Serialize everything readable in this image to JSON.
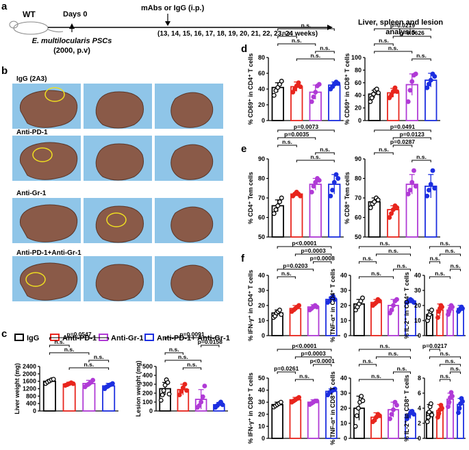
{
  "panel_labels": [
    "a",
    "b",
    "c",
    "d",
    "e",
    "f"
  ],
  "timeline": {
    "species": "WT",
    "day0": "Days 0",
    "treatment": "mAbs or IgG (i.p.)",
    "weeks": "(13, 14, 15, 16, 17, 18, 19, 20, 21, 22, 23, 24 weeks)",
    "analysis_line1": "Liver, spleen and lesion",
    "analysis_line2": "analysis",
    "psc_line1": "E. multilocularis PSCs",
    "psc_line2": "(2000, p.v)"
  },
  "photo_groups": [
    "IgG (2A3)",
    "Anti-PD-1",
    "Anti-Gr-1",
    "Anti-PD-1+Anti-Gr-1"
  ],
  "legend": {
    "items": [
      {
        "label": "IgG",
        "color": "#000000"
      },
      {
        "label": "Anti-PD-1",
        "color": "#e8251d"
      },
      {
        "label": "Anti-Gr-1",
        "color": "#b03ad6"
      },
      {
        "label": "Anti-PD-1+ Anti-Gr-1",
        "color": "#1c2ee0"
      }
    ]
  },
  "colors": {
    "igg": "#000000",
    "pd1": "#e8251d",
    "gr1": "#b03ad6",
    "combo": "#1c2ee0",
    "tissue": "#8a5a48",
    "bg": "#8fc5e8"
  },
  "chart_data": [
    {
      "id": "liver",
      "type": "bar",
      "ylabel": "Liver weight (mg)",
      "ylim": [
        0,
        2400
      ],
      "ticks": [
        "0",
        "400",
        "800",
        "1200",
        "1600",
        "2000",
        "2400"
      ],
      "categories": [
        "IgG",
        "Anti-PD-1",
        "Anti-Gr-1",
        "Anti-PD-1+Anti-Gr-1"
      ],
      "values": [
        1600,
        1450,
        1480,
        1350
      ],
      "errors": [
        90,
        100,
        170,
        140
      ],
      "points": [
        [
          1480,
          1560,
          1620,
          1680,
          1710
        ],
        [
          1380,
          1420,
          1470,
          1520,
          1470
        ],
        [
          1300,
          1400,
          1460,
          1540,
          1660
        ],
        [
          1200,
          1300,
          1360,
          1420,
          1480
        ]
      ],
      "annotations": [
        "p=0.0547",
        "n.s.",
        "n.s.",
        "n.s.",
        "n.s."
      ]
    },
    {
      "id": "lesion",
      "type": "bar",
      "ylabel": "Lesion weight (mg)",
      "ylim": [
        0,
        500
      ],
      "ticks": [
        "0",
        "100",
        "200",
        "300",
        "400",
        "500"
      ],
      "categories": [
        "IgG",
        "Anti-PD-1",
        "Anti-Gr-1",
        "Anti-PD-1+Anti-Gr-1"
      ],
      "values": [
        250,
        240,
        130,
        70
      ],
      "errors": [
        70,
        60,
        110,
        25
      ],
      "points": [
        [
          120,
          180,
          230,
          290,
          350,
          320,
          190
        ],
        [
          180,
          220,
          260,
          300,
          230
        ],
        [
          40,
          60,
          100,
          160,
          280
        ],
        [
          40,
          60,
          80,
          100,
          70
        ]
      ],
      "annotations": [
        "p=0.0091",
        "p=0.0158",
        "n.s.",
        "n.s.",
        "n.s."
      ]
    },
    {
      "id": "cd69_cd4",
      "type": "bar",
      "ylabel": "% CD69⁺ in CD4⁺ T cells",
      "ylim": [
        0,
        80
      ],
      "ticks": [
        "0",
        "20",
        "40",
        "60",
        "80"
      ],
      "categories": [
        "IgG",
        "Anti-PD-1",
        "Anti-Gr-1",
        "Anti-PD-1+Anti-Gr-1"
      ],
      "values": [
        42,
        43,
        36,
        45
      ],
      "errors": [
        6,
        6,
        9,
        4
      ],
      "points": [
        [
          32,
          38,
          42,
          46,
          50
        ],
        [
          36,
          40,
          44,
          48,
          43
        ],
        [
          24,
          30,
          36,
          44,
          46
        ],
        [
          40,
          43,
          46,
          49,
          47
        ]
      ],
      "annotations": [
        "n.s.",
        "n.s.",
        "n.s.",
        "n.s.",
        "n.s."
      ]
    },
    {
      "id": "cd69_cd8",
      "type": "bar",
      "ylabel": "% CD69⁺ in CD8⁺ T cells",
      "ylim": [
        0,
        100
      ],
      "ticks": [
        "0",
        "20",
        "40",
        "60",
        "80",
        "100"
      ],
      "categories": [
        "IgG",
        "Anti-PD-1",
        "Anti-Gr-1",
        "Anti-PD-1+Anti-Gr-1"
      ],
      "values": [
        42,
        44,
        57,
        64
      ],
      "errors": [
        6,
        7,
        17,
        11
      ],
      "points": [
        [
          30,
          36,
          42,
          48,
          50,
          44
        ],
        [
          36,
          40,
          46,
          52,
          46
        ],
        [
          30,
          48,
          62,
          72,
          74
        ],
        [
          52,
          58,
          64,
          74,
          70
        ]
      ],
      "annotations": [
        "p=0.0219",
        "p=0.0626",
        "n.s.",
        "n.s.",
        "n.s."
      ]
    },
    {
      "id": "cd4_tem",
      "type": "bar",
      "ylabel": "% CD4⁺ Tem cells",
      "ylim": [
        50,
        90
      ],
      "ticks": [
        "50",
        "60",
        "70",
        "80",
        "90"
      ],
      "categories": [
        "IgG",
        "Anti-PD-1",
        "Anti-Gr-1",
        "Anti-PD-1+Anti-Gr-1"
      ],
      "values": [
        66,
        72,
        77,
        77
      ],
      "errors": [
        3,
        1,
        3,
        5
      ],
      "points": [
        [
          62,
          64,
          66,
          68,
          70
        ],
        [
          71,
          72,
          73,
          72,
          71
        ],
        [
          73,
          76,
          78,
          80,
          79
        ],
        [
          71,
          74,
          78,
          82,
          80
        ]
      ],
      "annotations": [
        "p=0.0073",
        "p=0.0035",
        "n.s.",
        "n.s.",
        "n.s."
      ]
    },
    {
      "id": "cd8_tem",
      "type": "bar",
      "ylabel": "% CD8⁺ Tem cells",
      "ylim": [
        50,
        90
      ],
      "ticks": [
        "50",
        "60",
        "70",
        "80",
        "90"
      ],
      "categories": [
        "IgG",
        "Anti-PD-1",
        "Anti-Gr-1",
        "Anti-PD-1+Anti-Gr-1"
      ],
      "values": [
        68,
        64,
        77,
        76
      ],
      "errors": [
        2,
        2,
        5,
        6
      ],
      "points": [
        [
          65,
          67,
          68,
          70,
          69
        ],
        [
          60,
          62,
          64,
          66,
          65
        ],
        [
          72,
          74,
          78,
          84,
          76
        ],
        [
          71,
          74,
          77,
          84,
          75
        ]
      ],
      "annotations": [
        "p=0.0491",
        "p=0.0123",
        "p=0.0287",
        "n.s.",
        "n.s."
      ]
    },
    {
      "id": "ifng_cd4",
      "type": "bar",
      "ylabel": "% IFN-γ⁺ in CD4⁺ T cells",
      "ylim": [
        0,
        40
      ],
      "ticks": [
        "0",
        "10",
        "20",
        "30",
        "40"
      ],
      "categories": [
        "IgG",
        "Anti-PD-1",
        "Anti-Gr-1",
        "Anti-PD-1+Anti-Gr-1"
      ],
      "values": [
        15,
        18,
        19,
        24
      ],
      "errors": [
        2,
        2,
        1.5,
        1.5
      ],
      "points": [
        [
          12,
          13,
          15,
          16,
          17,
          14
        ],
        [
          16,
          17,
          18,
          19,
          20
        ],
        [
          17,
          18,
          19,
          20,
          19
        ],
        [
          22,
          23,
          25,
          26,
          24
        ]
      ],
      "annotations": [
        "p<0.0001",
        "p=0.0003",
        "p=0.0008",
        "p=0.0203",
        "n.s."
      ]
    },
    {
      "id": "tnfa_cd4",
      "type": "bar",
      "ylabel": "% TNF-α⁺ in CD4⁺ T cells",
      "ylim": [
        0,
        40
      ],
      "ticks": [
        "0",
        "10",
        "20",
        "30",
        "40"
      ],
      "categories": [
        "IgG",
        "Anti-PD-1",
        "Anti-Gr-1",
        "Anti-PD-1+Anti-Gr-1"
      ],
      "values": [
        21,
        22,
        20,
        23
      ],
      "errors": [
        3,
        2,
        4,
        1.5
      ],
      "points": [
        [
          17,
          19,
          21,
          23,
          25
        ],
        [
          20,
          21,
          22,
          24,
          23
        ],
        [
          15,
          17,
          20,
          23,
          24
        ],
        [
          22,
          23,
          24,
          23,
          22
        ]
      ],
      "annotations": [
        "n.s.",
        "n.s.",
        "n.s.",
        "n.s.",
        "n.s."
      ]
    },
    {
      "id": "il2_cd4",
      "type": "bar",
      "ylabel": "% IL-2⁺ in CD4⁺ T cells",
      "ylim": [
        0,
        40
      ],
      "ticks": [
        "0",
        "10",
        "20",
        "30",
        "40"
      ],
      "categories": [
        "IgG",
        "Anti-PD-1",
        "Anti-Gr-1",
        "Anti-PD-1+Anti-Gr-1"
      ],
      "values": [
        14,
        17,
        17,
        18
      ],
      "errors": [
        3,
        4,
        3,
        2
      ],
      "points": [
        [
          10,
          12,
          14,
          16,
          17
        ],
        [
          12,
          16,
          18,
          20,
          19
        ],
        [
          14,
          16,
          18,
          20,
          19
        ],
        [
          16,
          17,
          18,
          19,
          18
        ]
      ],
      "annotations": [
        "n.s.",
        "n.s.",
        "n.s.",
        "n.s.",
        "n.s."
      ]
    },
    {
      "id": "ifng_cd8",
      "type": "bar",
      "ylabel": "% IFN-γ⁺ in CD8⁺ T cells",
      "ylim": [
        0,
        50
      ],
      "ticks": [
        "0",
        "10",
        "20",
        "30",
        "40",
        "50"
      ],
      "categories": [
        "IgG",
        "Anti-PD-1",
        "Anti-Gr-1",
        "Anti-PD-1+Anti-Gr-1"
      ],
      "values": [
        28,
        32,
        30,
        39
      ],
      "errors": [
        2,
        2,
        2,
        2
      ],
      "points": [
        [
          26,
          27,
          28,
          29,
          30
        ],
        [
          30,
          31,
          32,
          33,
          34
        ],
        [
          28,
          29,
          30,
          31,
          31
        ],
        [
          36,
          38,
          39,
          40,
          41
        ]
      ],
      "annotations": [
        "p<0.0001",
        "p=0.0003",
        "p<0.0001",
        "p=0.0261",
        "n.s."
      ]
    },
    {
      "id": "tnfa_cd8",
      "type": "bar",
      "ylabel": "% TNF-α⁺ in CD8⁺ T cells",
      "ylim": [
        0,
        40
      ],
      "ticks": [
        "0",
        "10",
        "20",
        "30",
        "40"
      ],
      "categories": [
        "IgG",
        "Anti-PD-1",
        "Anti-Gr-1",
        "Anti-PD-1+Anti-Gr-1"
      ],
      "values": [
        20,
        14,
        19,
        16
      ],
      "errors": [
        8,
        3,
        5,
        3
      ],
      "points": [
        [
          8,
          15,
          20,
          24,
          28,
          25
        ],
        [
          11,
          12,
          14,
          16,
          15
        ],
        [
          13,
          16,
          19,
          24,
          22
        ],
        [
          13,
          15,
          17,
          18,
          16
        ]
      ],
      "annotations": [
        "n.s.",
        "n.s.",
        "n.s.",
        "n.s.",
        "n.s."
      ]
    },
    {
      "id": "il2_cd8",
      "type": "bar",
      "ylabel": "% IL-2⁺ in CD8⁺ T cells",
      "ylim": [
        0,
        8
      ],
      "ticks": [
        "0",
        "2",
        "4",
        "6",
        "8"
      ],
      "categories": [
        "IgG",
        "Anti-PD-1",
        "Anti-Gr-1",
        "Anti-PD-1+Anti-Gr-1"
      ],
      "values": [
        3.5,
        3.7,
        5.2,
        4.5
      ],
      "errors": [
        1.0,
        0.8,
        0.8,
        0.8
      ],
      "points": [
        [
          2.2,
          2.8,
          3.5,
          4.2,
          4.6,
          3.1
        ],
        [
          2.8,
          3.3,
          3.8,
          4.4,
          4.0
        ],
        [
          4.2,
          4.8,
          5.4,
          6.1,
          5.6
        ],
        [
          3.4,
          4.0,
          4.6,
          5.3,
          4.9
        ]
      ],
      "annotations": [
        "p=0.0217",
        "n.s.",
        "n.s.",
        "n.s.",
        "n.s."
      ]
    }
  ]
}
